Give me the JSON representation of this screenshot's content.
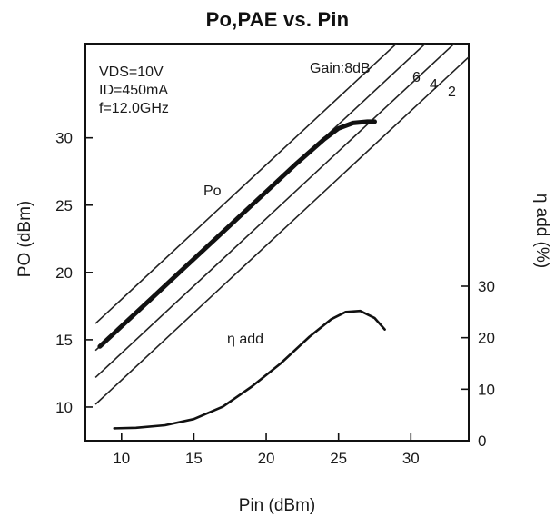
{
  "chart_data": {
    "type": "line",
    "title": "Po,PAE vs. Pin",
    "xlabel": "Pin (dBm)",
    "ylabel_left": "PO (dBm)",
    "ylabel_right": "η add (%)",
    "xlim": [
      7.5,
      34
    ],
    "ylim_left": [
      7.5,
      37
    ],
    "ylim_right": [
      0,
      30
    ],
    "x_ticks": [
      10,
      15,
      20,
      25,
      30
    ],
    "y_left_ticks": [
      10,
      15,
      20,
      25,
      30
    ],
    "y_right_ticks": [
      0,
      10,
      20,
      30
    ],
    "conditions": [
      "VDS=10V",
      "ID=450mA",
      "f=12.0GHz"
    ],
    "annotations": {
      "po_label": "Po",
      "pae_label": "η add",
      "gain_labels": [
        "Gain:8dB",
        "6",
        "4",
        "2"
      ]
    },
    "gain_lines": [
      {
        "gain_db": 8,
        "x": [
          8.2,
          32.0
        ],
        "y": [
          16.2,
          40.0
        ]
      },
      {
        "gain_db": 6,
        "x": [
          8.2,
          34.0
        ],
        "y": [
          14.2,
          40.0
        ]
      },
      {
        "gain_db": 4,
        "x": [
          8.2,
          34.0
        ],
        "y": [
          12.2,
          38.0
        ]
      },
      {
        "gain_db": 2,
        "x": [
          8.2,
          34.0
        ],
        "y": [
          10.2,
          36.0
        ]
      }
    ],
    "series": [
      {
        "name": "Po",
        "axis": "left",
        "x": [
          8.5,
          10,
          12,
          14,
          16,
          18,
          20,
          22,
          24,
          25,
          26,
          27,
          27.5
        ],
        "y": [
          14.5,
          16.0,
          18.0,
          20.0,
          22.0,
          24.0,
          26.0,
          28.0,
          29.9,
          30.7,
          31.1,
          31.2,
          31.2
        ]
      },
      {
        "name": "η add",
        "axis": "right",
        "x": [
          9.5,
          11,
          13,
          15,
          17,
          19,
          21,
          23,
          24.5,
          25.5,
          26.5,
          27.5,
          28.2
        ],
        "y": [
          2.4,
          2.5,
          3.0,
          4.2,
          6.6,
          10.5,
          15.0,
          20.2,
          23.6,
          25.0,
          25.2,
          23.8,
          21.6
        ]
      }
    ],
    "grid": false,
    "legend": "none"
  }
}
